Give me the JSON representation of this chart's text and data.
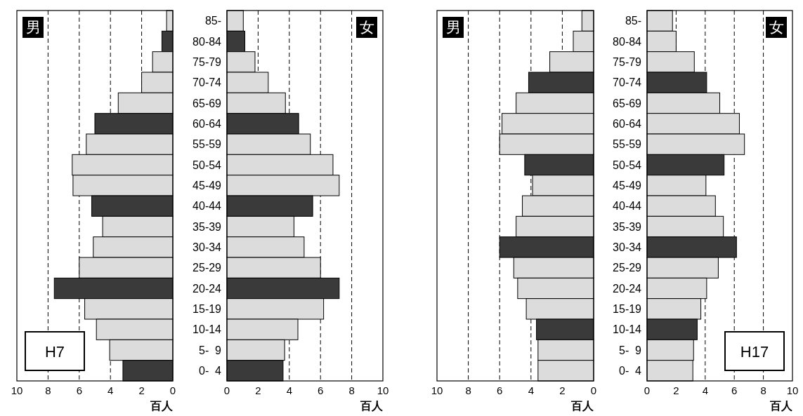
{
  "chart_data": [
    {
      "type": "bar",
      "orientation": "horizontal",
      "categories": [
        null,
        null,
        null,
        null,
        null,
        null,
        null,
        null,
        null,
        null,
        null,
        null,
        null,
        null,
        null,
        null,
        null,
        null
      ],
      "values": [
        0.4,
        0.7,
        1.3,
        2.0,
        3.5,
        5.0,
        5.55,
        6.45,
        6.4,
        5.2,
        4.5,
        5.1,
        6.0,
        7.6,
        5.65,
        4.9,
        4.05,
        3.2
      ],
      "colors": [
        "#dcdcdc",
        "#3a3a3a",
        "#dcdcdc",
        "#dcdcdc",
        "#dcdcdc",
        "#3a3a3a",
        "#dcdcdc",
        "#dcdcdc",
        "#dcdcdc",
        "#3a3a3a",
        "#dcdcdc",
        "#dcdcdc",
        "#dcdcdc",
        "#3a3a3a",
        "#dcdcdc",
        "#dcdcdc",
        "#dcdcdc",
        "#3a3a3a"
      ],
      "xlim": [
        10,
        0
      ],
      "xticks": [
        10,
        8,
        6,
        4,
        2,
        0
      ],
      "grid": "x",
      "xlabel": "百人",
      "tick_labels": "x",
      "annotations": [
        "男",
        "H7"
      ]
    },
    {
      "type": "bar",
      "orientation": "horizontal",
      "categories": [
        "85-",
        "80-84",
        "75-79",
        "70-74",
        "65-69",
        "60-64",
        "55-59",
        "50-54",
        "45-49",
        "40-44",
        "35-39",
        "30-34",
        "25-29",
        "20-24",
        "15-19",
        "10-14",
        "5-  9",
        "0-  4"
      ],
      "values": [
        1.05,
        1.15,
        1.8,
        2.65,
        3.75,
        4.6,
        5.35,
        6.8,
        7.2,
        5.5,
        4.3,
        4.95,
        6.0,
        7.2,
        6.2,
        4.55,
        3.7,
        3.6
      ],
      "colors": [
        "#dcdcdc",
        "#3a3a3a",
        "#dcdcdc",
        "#dcdcdc",
        "#dcdcdc",
        "#3a3a3a",
        "#dcdcdc",
        "#dcdcdc",
        "#dcdcdc",
        "#3a3a3a",
        "#dcdcdc",
        "#dcdcdc",
        "#dcdcdc",
        "#3a3a3a",
        "#dcdcdc",
        "#dcdcdc",
        "#dcdcdc",
        "#3a3a3a"
      ],
      "xlim": [
        0,
        10
      ],
      "xticks": [
        0,
        2,
        4,
        6,
        8,
        10
      ],
      "grid": "x",
      "xlabel": "百人",
      "annotations": [
        "女"
      ]
    },
    {
      "type": "bar",
      "orientation": "horizontal",
      "categories": [
        null,
        null,
        null,
        null,
        null,
        null,
        null,
        null,
        null,
        null,
        null,
        null,
        null,
        null,
        null,
        null,
        null,
        null
      ],
      "values": [
        0.75,
        1.3,
        2.8,
        4.15,
        4.95,
        5.85,
        6.0,
        4.4,
        3.9,
        4.55,
        4.95,
        6.0,
        5.1,
        4.85,
        4.3,
        3.65,
        3.55,
        3.55
      ],
      "colors": [
        "#dcdcdc",
        "#dcdcdc",
        "#dcdcdc",
        "#3a3a3a",
        "#dcdcdc",
        "#dcdcdc",
        "#dcdcdc",
        "#3a3a3a",
        "#dcdcdc",
        "#dcdcdc",
        "#dcdcdc",
        "#3a3a3a",
        "#dcdcdc",
        "#dcdcdc",
        "#dcdcdc",
        "#3a3a3a",
        "#dcdcdc",
        "#dcdcdc"
      ],
      "xlim": [
        10,
        0
      ],
      "xticks": [
        10,
        8,
        6,
        4,
        2,
        0
      ],
      "grid": "x",
      "xlabel": "百人",
      "tick_labels": "x",
      "annotations": [
        "男"
      ]
    },
    {
      "type": "bar",
      "orientation": "horizontal",
      "categories": [
        "85-",
        "80-84",
        "75-79",
        "70-74",
        "65-69",
        "60-64",
        "55-59",
        "50-54",
        "45-49",
        "40-44",
        "35-39",
        "30-34",
        "25-29",
        "20-24",
        "15-19",
        "10-14",
        "5-  9",
        "0-  4"
      ],
      "values": [
        1.75,
        2.0,
        3.25,
        4.1,
        5.0,
        6.35,
        6.7,
        5.3,
        4.05,
        4.7,
        5.25,
        6.15,
        4.9,
        4.1,
        3.7,
        3.45,
        3.2,
        3.15
      ],
      "colors": [
        "#dcdcdc",
        "#dcdcdc",
        "#dcdcdc",
        "#3a3a3a",
        "#dcdcdc",
        "#dcdcdc",
        "#dcdcdc",
        "#3a3a3a",
        "#dcdcdc",
        "#dcdcdc",
        "#dcdcdc",
        "#3a3a3a",
        "#dcdcdc",
        "#dcdcdc",
        "#dcdcdc",
        "#3a3a3a",
        "#dcdcdc",
        "#dcdcdc"
      ],
      "xlim": [
        0,
        10
      ],
      "xticks": [
        0,
        2,
        4,
        6,
        8,
        10
      ],
      "grid": "x",
      "xlabel": "百人",
      "annotations": [
        "女",
        "H17"
      ]
    }
  ]
}
